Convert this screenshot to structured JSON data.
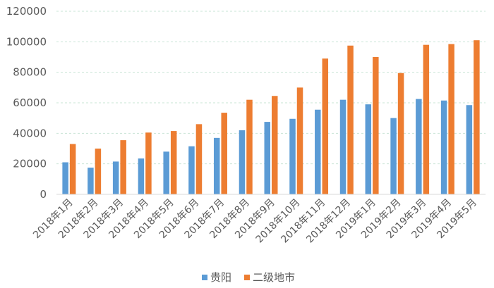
{
  "chart_data": {
    "type": "bar",
    "categories": [
      "2018年1月",
      "2018年2月",
      "2018年3月",
      "2018年4月",
      "2018年5月",
      "2018年6月",
      "2018年7月",
      "2018年8月",
      "2018年9月",
      "2018年10月",
      "2018年11月",
      "2018年12月",
      "2019年1月",
      "2019年2月",
      "2019年3月",
      "2019年4月",
      "2019年5月"
    ],
    "series": [
      {
        "name": "贵阳",
        "color": "#5B9BD5",
        "values": [
          21000,
          17500,
          21500,
          23500,
          28000,
          31500,
          37000,
          42000,
          47500,
          49500,
          55500,
          62000,
          59000,
          50000,
          62500,
          61500,
          58500
        ]
      },
      {
        "name": "二级地市",
        "color": "#ED7D31",
        "values": [
          33000,
          30000,
          35500,
          40500,
          41500,
          46000,
          53500,
          62000,
          64500,
          70000,
          89000,
          97500,
          90000,
          79500,
          98000,
          98500,
          101000
        ]
      }
    ],
    "yticks": [
      "0",
      "20000",
      "40000",
      "60000",
      "80000",
      "100000",
      "120000"
    ],
    "ylim": [
      0,
      120000
    ],
    "grid": true,
    "legend": "bottom"
  }
}
